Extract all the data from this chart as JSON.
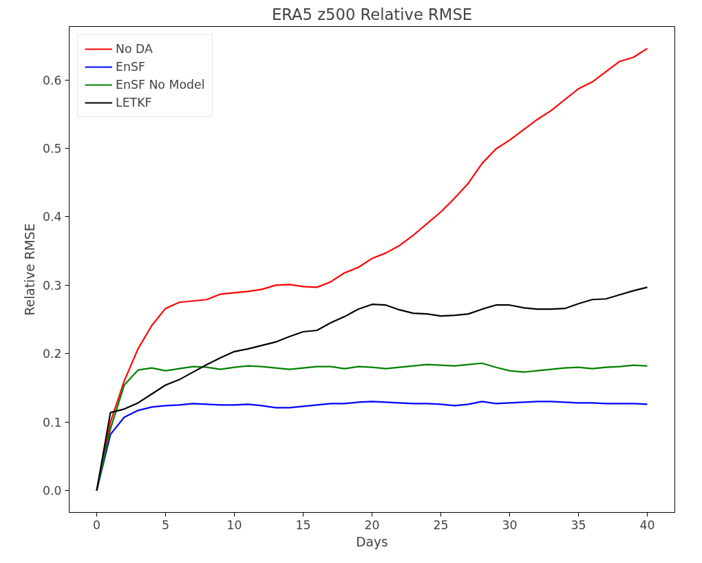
{
  "chart_data": {
    "type": "line",
    "title": "ERA5 z500 Relative RMSE",
    "xlabel": "Days",
    "ylabel": "Relative RMSE",
    "x": [
      0,
      1,
      2,
      3,
      4,
      5,
      6,
      7,
      8,
      9,
      10,
      11,
      12,
      13,
      14,
      15,
      16,
      17,
      18,
      19,
      20,
      21,
      22,
      23,
      24,
      25,
      26,
      27,
      28,
      29,
      30,
      31,
      32,
      33,
      34,
      35,
      36,
      37,
      38,
      39,
      40
    ],
    "series": [
      {
        "name": "No DA",
        "color": "#ff0000",
        "values": [
          0,
          0.1,
          0.16,
          0.207,
          0.241,
          0.266,
          0.275,
          0.277,
          0.279,
          0.287,
          0.289,
          0.291,
          0.294,
          0.3,
          0.301,
          0.298,
          0.297,
          0.305,
          0.318,
          0.326,
          0.339,
          0.347,
          0.358,
          0.373,
          0.39,
          0.407,
          0.427,
          0.449,
          0.478,
          0.499,
          0.512,
          0.527,
          0.542,
          0.555,
          0.571,
          0.587,
          0.597,
          0.612,
          0.627,
          0.633,
          0.646
        ]
      },
      {
        "name": "EnSF",
        "color": "#0000ff",
        "values": [
          0,
          0.082,
          0.107,
          0.117,
          0.122,
          0.124,
          0.125,
          0.127,
          0.126,
          0.125,
          0.125,
          0.126,
          0.124,
          0.121,
          0.121,
          0.123,
          0.125,
          0.127,
          0.127,
          0.129,
          0.13,
          0.129,
          0.128,
          0.127,
          0.127,
          0.126,
          0.124,
          0.126,
          0.13,
          0.127,
          0.128,
          0.129,
          0.13,
          0.13,
          0.129,
          0.128,
          0.128,
          0.127,
          0.127,
          0.127,
          0.126
        ]
      },
      {
        "name": "EnSF No Model",
        "color": "#008000",
        "values": [
          0,
          0.09,
          0.154,
          0.176,
          0.179,
          0.175,
          0.178,
          0.181,
          0.18,
          0.177,
          0.18,
          0.182,
          0.181,
          0.179,
          0.177,
          0.179,
          0.181,
          0.181,
          0.178,
          0.181,
          0.18,
          0.178,
          0.18,
          0.182,
          0.184,
          0.183,
          0.182,
          0.184,
          0.186,
          0.18,
          0.175,
          0.173,
          0.175,
          0.177,
          0.179,
          0.18,
          0.178,
          0.18,
          0.181,
          0.183,
          0.182
        ]
      },
      {
        "name": "LETKF",
        "color": "#000000",
        "values": [
          0,
          0.114,
          0.119,
          0.128,
          0.141,
          0.154,
          0.162,
          0.173,
          0.184,
          0.194,
          0.203,
          0.207,
          0.212,
          0.217,
          0.225,
          0.232,
          0.234,
          0.245,
          0.254,
          0.265,
          0.272,
          0.271,
          0.264,
          0.259,
          0.258,
          0.255,
          0.256,
          0.258,
          0.265,
          0.271,
          0.271,
          0.267,
          0.265,
          0.265,
          0.266,
          0.273,
          0.279,
          0.28,
          0.286,
          0.292,
          0.297
        ]
      }
    ],
    "xlim": [
      -2,
      42
    ],
    "ylim": [
      -0.032,
      0.678
    ],
    "xticks": [
      0,
      5,
      10,
      15,
      20,
      25,
      30,
      35,
      40
    ],
    "yticks": [
      {
        "value": 0,
        "label": "0.0"
      },
      {
        "value": 0.1,
        "label": "0.1"
      },
      {
        "value": 0.2,
        "label": "0.2"
      },
      {
        "value": 0.3,
        "label": "0.3"
      },
      {
        "value": 0.4,
        "label": "0.4"
      },
      {
        "value": 0.5,
        "label": "0.5"
      },
      {
        "value": 0.6,
        "label": "0.6"
      }
    ],
    "legend": "top left",
    "grid": false,
    "marker": "none",
    "line_style": "solid"
  }
}
